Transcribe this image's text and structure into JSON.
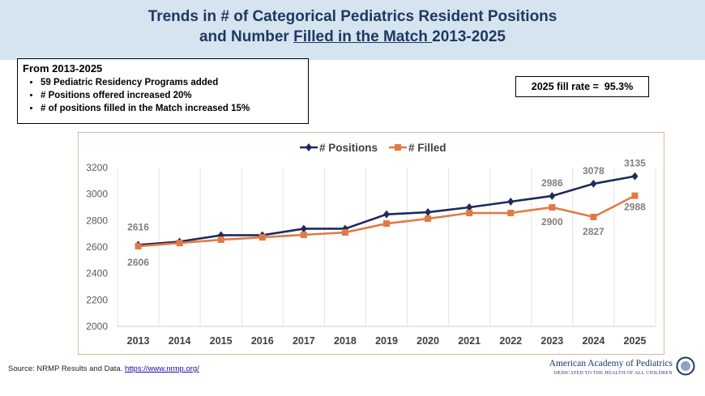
{
  "header": {
    "title_line1": "Trends in # of Categorical Pediatrics Resident Positions",
    "title_line2_prefix": "and Number ",
    "title_line2_underlined": "Filled in the Match ",
    "title_line2_suffix": "2013-2025"
  },
  "summary": {
    "heading": "From 2013-2025",
    "bullets": [
      "59 Pediatric Residency Programs added",
      "# Positions offered increased 20%",
      "# of positions filled in the Match increased 15%"
    ]
  },
  "fill_rate": "2025 fill rate =  95.3%",
  "source": {
    "text": "Source: NRMP Results and Data. ",
    "link": "https://www.nrmp.org/"
  },
  "logo": {
    "name": "American Academy of Pediatrics",
    "tagline": "DEDICATED TO THE HEALTH OF ALL CHILDREN"
  },
  "chart_data": {
    "type": "line",
    "categories": [
      "2013",
      "2014",
      "2015",
      "2016",
      "2017",
      "2018",
      "2019",
      "2020",
      "2021",
      "2022",
      "2023",
      "2024",
      "2025"
    ],
    "ylim": [
      2000,
      3200
    ],
    "yticks": [
      2000,
      2200,
      2400,
      2600,
      2800,
      3000,
      3200
    ],
    "grid": "vertical",
    "legend": "top",
    "series": [
      {
        "name": "# Positions",
        "color": "#1f2a5c",
        "marker": "diamond",
        "values": [
          2616,
          2640,
          2689,
          2689,
          2738,
          2738,
          2847,
          2863,
          2900,
          2943,
          2986,
          3078,
          3135
        ],
        "labels": {
          "0": "2616",
          "10": "2986",
          "11": "3078",
          "12": "3135"
        }
      },
      {
        "name": "# Filled",
        "color": "#e07b45",
        "marker": "square",
        "values": [
          2606,
          2630,
          2655,
          2673,
          2692,
          2710,
          2777,
          2814,
          2857,
          2857,
          2900,
          2827,
          2988
        ],
        "labels": {
          "0": "2606",
          "10": "2900",
          "11": "2827",
          "12": "2988"
        }
      }
    ]
  }
}
